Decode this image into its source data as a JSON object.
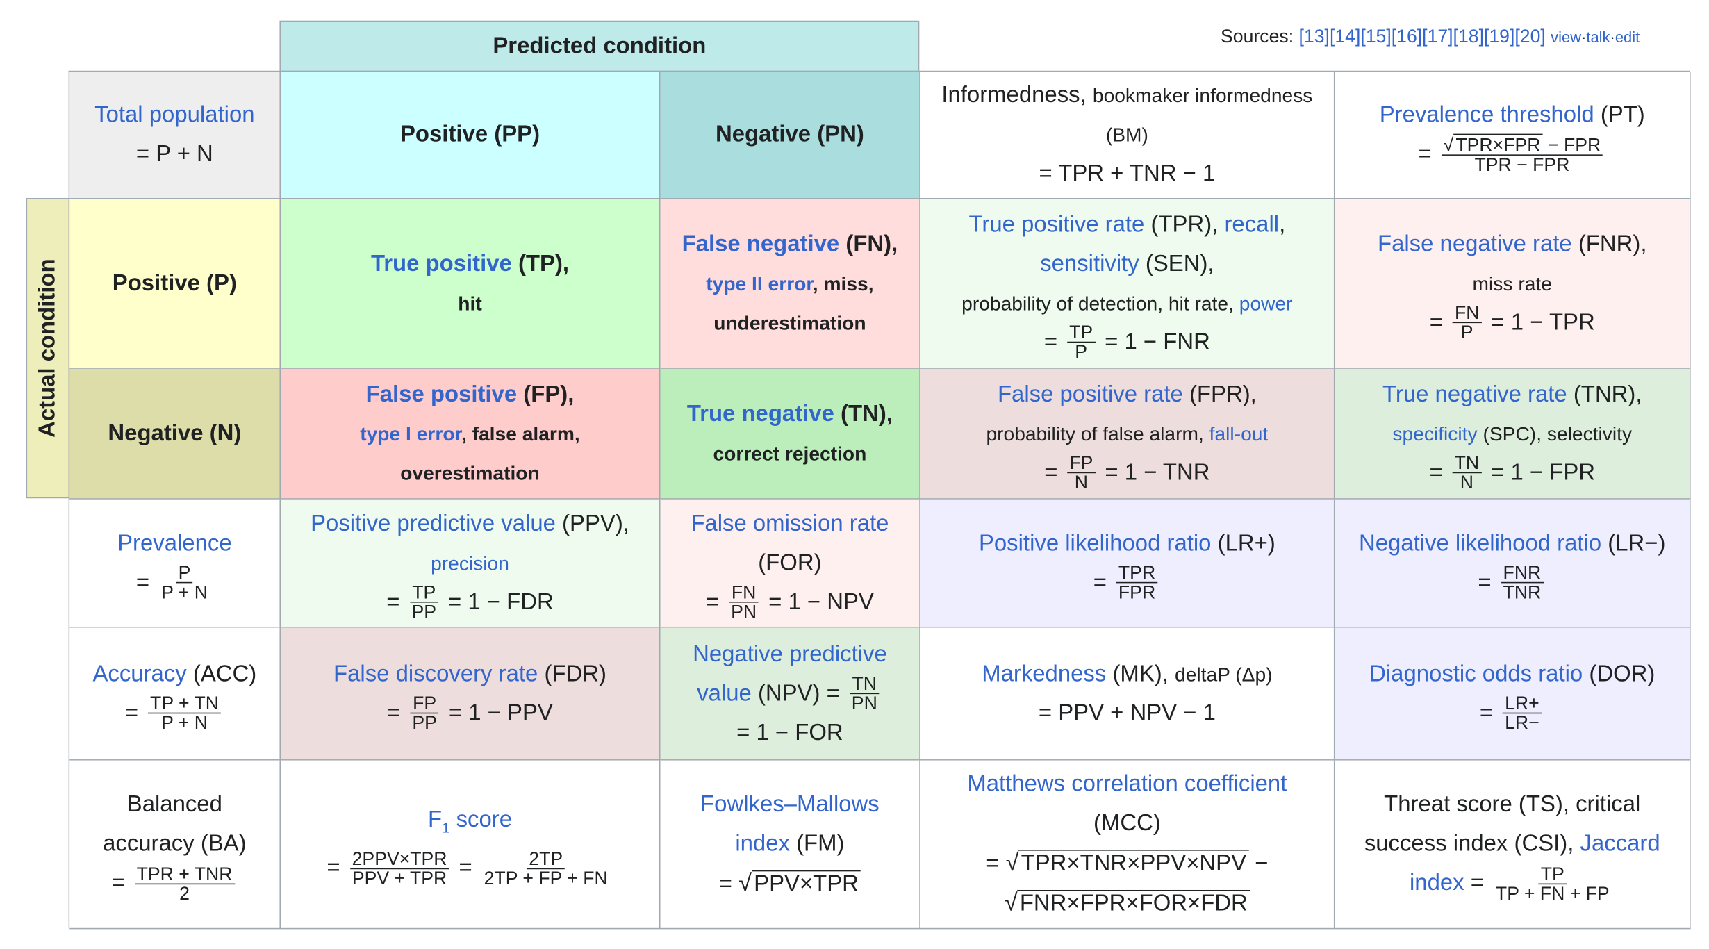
{
  "sources": {
    "label": "Sources:",
    "refs": "[13][14][15][16][17][18][19][20]",
    "view": "view",
    "talk": "talk",
    "edit": "edit",
    "sep": "·"
  },
  "headers": {
    "predicted_condition": "Predicted condition",
    "actual_condition": "Actual condition"
  },
  "cells": {
    "total_population": {
      "name": "Total population",
      "formula": "= P + N"
    },
    "positive_pp": "Positive (PP)",
    "negative_pn": "Negative (PN)",
    "informedness": {
      "name": "Informedness,",
      "alt": "bookmaker informedness",
      "abbr": "(BM)",
      "formula": "= TPR + TNR − 1"
    },
    "prevalence_threshold": {
      "name": "Prevalence threshold",
      "abbr": "(PT)",
      "eq": "=",
      "num_sqrt": "TPR×FPR",
      "num_rest": "− FPR",
      "den": "TPR − FPR",
      "radical": "√"
    },
    "positive_p": "Positive (P)",
    "negative_n": "Negative (N)",
    "tp": {
      "name": "True positive",
      "abbr": "(TP),",
      "alt": "hit"
    },
    "fn": {
      "name": "False negative",
      "abbr": "(FN),",
      "alt_link": "type II error",
      "alt_rest": ", miss,",
      "alt2": "underestimation"
    },
    "tpr": {
      "name": "True positive rate",
      "abbr": "(TPR),",
      "link2": "recall",
      "comma": ",",
      "link3": "sensitivity",
      "abbr3": "(SEN),",
      "alt": "probability of detection, hit rate,",
      "link4": "power",
      "eq": "=",
      "num": "TP",
      "den": "P",
      "rest": "= 1 − FNR"
    },
    "fnr": {
      "name": "False negative rate",
      "abbr": "(FNR),",
      "alt": "miss rate",
      "eq": "=",
      "num": "FN",
      "den": "P",
      "rest": "= 1 − TPR"
    },
    "fp": {
      "name": "False positive",
      "abbr": "(FP),",
      "alt_link": "type I error",
      "alt_rest": ", false alarm,",
      "alt2": "overestimation"
    },
    "tn": {
      "name": "True negative",
      "abbr": "(TN),",
      "alt": "correct rejection"
    },
    "fpr": {
      "name": "False positive rate",
      "abbr": "(FPR),",
      "alt": "probability of false alarm,",
      "link2": "fall-out",
      "eq": "=",
      "num": "FP",
      "den": "N",
      "rest": "= 1 − TNR"
    },
    "tnr": {
      "name": "True negative rate",
      "abbr": "(TNR),",
      "link2": "specificity",
      "alt": "(SPC), selectivity",
      "eq": "=",
      "num": "TN",
      "den": "N",
      "rest": "= 1 − FPR"
    },
    "prevalence": {
      "name": "Prevalence",
      "eq": "=",
      "num": "P",
      "den": "P + N"
    },
    "ppv": {
      "name": "Positive predictive value",
      "abbr": "(PPV),",
      "link2": "precision",
      "eq": "=",
      "num": "TP",
      "den": "PP",
      "rest": "= 1 − FDR"
    },
    "for": {
      "name": "False omission rate",
      "abbr": "(FOR)",
      "eq": "=",
      "num": "FN",
      "den": "PN",
      "rest": "= 1 − NPV"
    },
    "lr_pos": {
      "name": "Positive likelihood ratio",
      "abbr": "(LR+)",
      "eq": "=",
      "num": "TPR",
      "den": "FPR"
    },
    "lr_neg": {
      "name": "Negative likelihood ratio",
      "abbr": "(LR−)",
      "eq": "=",
      "num": "FNR",
      "den": "TNR"
    },
    "accuracy": {
      "name": "Accuracy",
      "abbr": "(ACC)",
      "eq": "=",
      "num": "TP + TN",
      "den": "P + N"
    },
    "fdr": {
      "name": "False discovery rate",
      "abbr": "(FDR)",
      "eq": "=",
      "num": "FP",
      "den": "PP",
      "rest": "= 1 − PPV"
    },
    "npv": {
      "name1": "Negative predictive",
      "name2": "value",
      "abbr": "(NPV) =",
      "num": "TN",
      "den": "PN",
      "rest": "= 1 − FOR"
    },
    "markedness": {
      "name": "Markedness",
      "abbr": "(MK),",
      "alt": "deltaP (Δp)",
      "formula": "= PPV + NPV − 1"
    },
    "dor": {
      "name": "Diagnostic odds ratio",
      "abbr": "(DOR)",
      "eq": "=",
      "num": "LR+",
      "den": "LR−"
    },
    "balanced_accuracy": {
      "line1": "Balanced",
      "line2": "accuracy (BA)",
      "eq": "=",
      "num": "TPR + TNR",
      "den": "2"
    },
    "f1": {
      "name_pre": "F",
      "name_sub": "1",
      "name_post": " score",
      "eq": "=",
      "num1": "2PPV×TPR",
      "den1": "PPV + TPR",
      "eq2": "=",
      "num2": "2TP",
      "den2": "2TP + FP + FN"
    },
    "fm": {
      "name1": "Fowlkes–Mallows",
      "name2": "index",
      "abbr": "(FM)",
      "eq": "=",
      "radical": "√",
      "sqrt": "PPV×TPR"
    },
    "mcc": {
      "name": "Matthews correlation coefficient",
      "abbr": "(MCC)",
      "eq": "=",
      "radical": "√",
      "sqrt1": "TPR×TNR×PPV×NPV",
      "minus": "−",
      "sqrt2": "FNR×FPR×FOR×FDR"
    },
    "ts": {
      "line1": "Threat score (TS), critical",
      "line2_pre": "success index (CSI),",
      "link1": "Jaccard",
      "link2": "index",
      "eq": "=",
      "num": "TP",
      "den": "TP + FN + FP"
    }
  },
  "colors": {
    "predicted_header": "#bfeaea",
    "actual_header": "#eeeebb",
    "total": "#eeeeee",
    "pp": "#ccffff",
    "pn": "#aadddd",
    "pos_p": "#ffffcc",
    "neg_n": "#ddddaa",
    "tp": "#ccffcc",
    "fn": "#ffdddd",
    "fp": "#ffcccc",
    "tn": "#bbeebb",
    "tpr": "#eefbee",
    "fnr": "#fff0f0",
    "fpr": "#eedddd",
    "tnr": "#ddeedd",
    "ppv": "#eefbee",
    "for": "#fff0f0",
    "lr": "#eeeeff",
    "fdr": "#eedddd",
    "npv": "#ddeedd",
    "link": "#3366cc"
  }
}
